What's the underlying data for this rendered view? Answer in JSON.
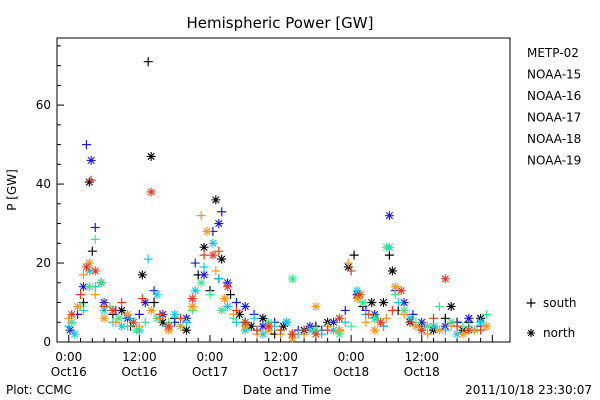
{
  "chart_data": {
    "type": "scatter",
    "title": "Hemispheric Power [GW]",
    "ylabel": "P [GW]",
    "xlabel": "Date and Time",
    "x_unit": "hours since 2011-10-16 00:00",
    "xlim": [
      -2,
      75
    ],
    "ylim": [
      0,
      77
    ],
    "y_ticks": [
      0,
      20,
      40,
      60
    ],
    "x_ticks": [
      {
        "x": 0,
        "top": "0:00",
        "bottom": "Oct16"
      },
      {
        "x": 12,
        "top": "12:00",
        "bottom": "Oct16"
      },
      {
        "x": 24,
        "top": "0:00",
        "bottom": "Oct17"
      },
      {
        "x": 36,
        "top": "12:00",
        "bottom": "Oct17"
      },
      {
        "x": 48,
        "top": "0:00",
        "bottom": "Oct18"
      },
      {
        "x": 60,
        "top": "12:00",
        "bottom": "Oct18"
      }
    ],
    "legend_position": "right",
    "marker_legend": [
      {
        "symbol": "+",
        "label": "south",
        "marker": "plus"
      },
      {
        "symbol": "*",
        "label": "north",
        "marker": "star"
      }
    ],
    "series": [
      {
        "name": "METP-02",
        "color": "#000000",
        "marker": "mixed",
        "points": [
          [
            2.5,
            10
          ],
          [
            3.5,
            40.5
          ],
          [
            4.0,
            23
          ],
          [
            5.5,
            15
          ],
          [
            7.5,
            7
          ],
          [
            9,
            8
          ],
          [
            10.5,
            4
          ],
          [
            12.5,
            17
          ],
          [
            13.5,
            71
          ],
          [
            14,
            47
          ],
          [
            14.5,
            10
          ],
          [
            16,
            5
          ],
          [
            18,
            6
          ],
          [
            20,
            3
          ],
          [
            22,
            17
          ],
          [
            23,
            24
          ],
          [
            24,
            13
          ],
          [
            25,
            36
          ],
          [
            25.5,
            16
          ],
          [
            26,
            21
          ],
          [
            27.5,
            12
          ],
          [
            29,
            7
          ],
          [
            30,
            5
          ],
          [
            31,
            4
          ],
          [
            32,
            3
          ],
          [
            33,
            6
          ],
          [
            35,
            2
          ],
          [
            36.5,
            4
          ],
          [
            38,
            2
          ],
          [
            40,
            3
          ],
          [
            42,
            4
          ],
          [
            44,
            5
          ],
          [
            46,
            3
          ],
          [
            47.5,
            19
          ],
          [
            48.5,
            22
          ],
          [
            49,
            12
          ],
          [
            50,
            9
          ],
          [
            51.5,
            10
          ],
          [
            52,
            6
          ],
          [
            53.5,
            10
          ],
          [
            54.5,
            22
          ],
          [
            55,
            18
          ],
          [
            56,
            8
          ],
          [
            58,
            5
          ],
          [
            60,
            4
          ],
          [
            62,
            3
          ],
          [
            64,
            6
          ],
          [
            65,
            9
          ],
          [
            66,
            5
          ],
          [
            67,
            3
          ],
          [
            68,
            5
          ],
          [
            70,
            6
          ]
        ]
      },
      {
        "name": "NOAA-15",
        "color": "#1a1adb",
        "marker": "mixed",
        "points": [
          [
            0.2,
            3
          ],
          [
            1.5,
            7
          ],
          [
            2.5,
            14
          ],
          [
            3.0,
            50
          ],
          [
            3.8,
            46
          ],
          [
            4.5,
            29
          ],
          [
            6,
            10
          ],
          [
            8,
            8
          ],
          [
            10,
            6
          ],
          [
            12,
            7
          ],
          [
            13,
            10
          ],
          [
            14.5,
            13
          ],
          [
            16,
            7
          ],
          [
            18,
            5
          ],
          [
            20,
            6
          ],
          [
            21.5,
            20
          ],
          [
            23,
            17
          ],
          [
            24.5,
            28
          ],
          [
            25.5,
            30
          ],
          [
            26,
            33
          ],
          [
            27,
            15
          ],
          [
            28.5,
            10
          ],
          [
            30,
            9
          ],
          [
            31.5,
            7
          ],
          [
            33,
            4
          ],
          [
            35,
            5
          ],
          [
            37,
            5
          ],
          [
            39,
            3
          ],
          [
            41,
            4
          ],
          [
            43,
            3
          ],
          [
            45,
            5
          ],
          [
            47,
            8
          ],
          [
            49,
            12
          ],
          [
            50.5,
            8
          ],
          [
            52,
            7
          ],
          [
            53.5,
            4
          ],
          [
            54.5,
            32
          ],
          [
            55.5,
            13
          ],
          [
            57,
            10
          ],
          [
            58.5,
            7
          ],
          [
            60,
            5
          ],
          [
            62,
            4
          ],
          [
            64,
            4
          ],
          [
            66,
            5
          ],
          [
            68,
            6
          ],
          [
            70,
            4
          ]
        ]
      },
      {
        "name": "NOAA-16",
        "color": "#14c8e6",
        "marker": "mixed",
        "points": [
          [
            0,
            4
          ],
          [
            1,
            2
          ],
          [
            2.5,
            8
          ],
          [
            3.5,
            18
          ],
          [
            4.5,
            14
          ],
          [
            6,
            8
          ],
          [
            7.5,
            5
          ],
          [
            9,
            4
          ],
          [
            10.5,
            6
          ],
          [
            12,
            3
          ],
          [
            13.5,
            21
          ],
          [
            15,
            12
          ],
          [
            16.5,
            4
          ],
          [
            18,
            7
          ],
          [
            20,
            5
          ],
          [
            21.5,
            13
          ],
          [
            23,
            19
          ],
          [
            24.5,
            25
          ],
          [
            25.5,
            16
          ],
          [
            27,
            9
          ],
          [
            28.5,
            5
          ],
          [
            30,
            3
          ],
          [
            31.5,
            6
          ],
          [
            33,
            2
          ],
          [
            35,
            4
          ],
          [
            37,
            5
          ],
          [
            39,
            2
          ],
          [
            41,
            3
          ],
          [
            43,
            2
          ],
          [
            45,
            3
          ],
          [
            47,
            5
          ],
          [
            49,
            13
          ],
          [
            50.5,
            7
          ],
          [
            52,
            6
          ],
          [
            53.5,
            4
          ],
          [
            54.5,
            24
          ],
          [
            56,
            10
          ],
          [
            58,
            6
          ],
          [
            60,
            3
          ],
          [
            62,
            4
          ],
          [
            64,
            3
          ],
          [
            66,
            2
          ],
          [
            68,
            4
          ],
          [
            70,
            5
          ]
        ]
      },
      {
        "name": "NOAA-17",
        "color": "#3ce68c",
        "marker": "mixed",
        "points": [
          [
            0.5,
            5
          ],
          [
            2,
            9
          ],
          [
            3.5,
            14
          ],
          [
            4.5,
            26
          ],
          [
            5.5,
            15
          ],
          [
            7,
            9
          ],
          [
            8.5,
            6
          ],
          [
            10,
            4
          ],
          [
            11.5,
            3
          ],
          [
            13,
            5
          ],
          [
            15,
            6
          ],
          [
            17,
            5
          ],
          [
            19,
            4
          ],
          [
            21,
            8
          ],
          [
            22.5,
            15
          ],
          [
            24,
            12
          ],
          [
            26,
            8
          ],
          [
            28,
            6
          ],
          [
            30,
            4
          ],
          [
            32,
            3
          ],
          [
            34,
            5
          ],
          [
            36,
            3
          ],
          [
            38,
            16
          ],
          [
            40,
            2
          ],
          [
            42,
            3
          ],
          [
            44,
            4
          ],
          [
            46,
            2
          ],
          [
            48,
            4
          ],
          [
            50,
            10
          ],
          [
            52,
            6
          ],
          [
            54,
            24
          ],
          [
            55.5,
            12
          ],
          [
            57,
            8
          ],
          [
            59,
            5
          ],
          [
            61,
            4
          ],
          [
            63,
            9
          ],
          [
            65,
            5
          ],
          [
            67,
            4
          ],
          [
            69,
            3
          ],
          [
            71,
            7
          ]
        ]
      },
      {
        "name": "NOAA-18",
        "color": "#f5961e",
        "marker": "mixed",
        "points": [
          [
            0,
            6
          ],
          [
            1.5,
            9
          ],
          [
            2.5,
            17
          ],
          [
            3.5,
            20
          ],
          [
            4.5,
            12
          ],
          [
            6,
            6
          ],
          [
            8,
            5
          ],
          [
            10,
            7
          ],
          [
            12,
            4
          ],
          [
            14,
            8
          ],
          [
            15.5,
            6
          ],
          [
            17,
            3
          ],
          [
            19,
            4
          ],
          [
            21,
            9
          ],
          [
            22.5,
            32
          ],
          [
            23.5,
            28
          ],
          [
            25,
            18
          ],
          [
            26.5,
            11
          ],
          [
            28,
            7
          ],
          [
            30,
            4
          ],
          [
            32,
            2
          ],
          [
            34,
            3
          ],
          [
            36,
            2
          ],
          [
            38,
            1
          ],
          [
            40,
            2
          ],
          [
            42,
            9
          ],
          [
            44,
            4
          ],
          [
            46,
            3
          ],
          [
            47.5,
            20
          ],
          [
            49,
            11
          ],
          [
            50.5,
            5
          ],
          [
            52,
            3
          ],
          [
            54,
            6
          ],
          [
            55.5,
            14
          ],
          [
            57,
            7
          ],
          [
            59,
            4
          ],
          [
            61,
            2
          ],
          [
            63,
            3
          ],
          [
            65,
            4
          ],
          [
            67,
            2
          ],
          [
            69,
            3
          ],
          [
            71,
            4
          ]
        ]
      },
      {
        "name": "NOAA-19",
        "color": "#e63c1e",
        "marker": "mixed",
        "points": [
          [
            0.5,
            7
          ],
          [
            2,
            12
          ],
          [
            3,
            19
          ],
          [
            3.8,
            41
          ],
          [
            4.5,
            18
          ],
          [
            6,
            9
          ],
          [
            7.5,
            8
          ],
          [
            9,
            10
          ],
          [
            11,
            5
          ],
          [
            12.5,
            11
          ],
          [
            14,
            38
          ],
          [
            15.5,
            7
          ],
          [
            17,
            4
          ],
          [
            19,
            6
          ],
          [
            21,
            11
          ],
          [
            23,
            22
          ],
          [
            24.5,
            22
          ],
          [
            25.5,
            23
          ],
          [
            27,
            14
          ],
          [
            28.5,
            8
          ],
          [
            30,
            5
          ],
          [
            32,
            3
          ],
          [
            34,
            4
          ],
          [
            36,
            3
          ],
          [
            38,
            2
          ],
          [
            40,
            3
          ],
          [
            42,
            2
          ],
          [
            44,
            3
          ],
          [
            46,
            6
          ],
          [
            48,
            18
          ],
          [
            49.5,
            12
          ],
          [
            51,
            7
          ],
          [
            53,
            5
          ],
          [
            55,
            8
          ],
          [
            56.5,
            13
          ],
          [
            58,
            5
          ],
          [
            60,
            3
          ],
          [
            62,
            6
          ],
          [
            64,
            16
          ],
          [
            66,
            4
          ],
          [
            68,
            3
          ],
          [
            70,
            3
          ]
        ]
      }
    ]
  },
  "footer": {
    "plot_source": "Plot: CCMC",
    "timestamp": "2011/10/18 23:30:07"
  }
}
